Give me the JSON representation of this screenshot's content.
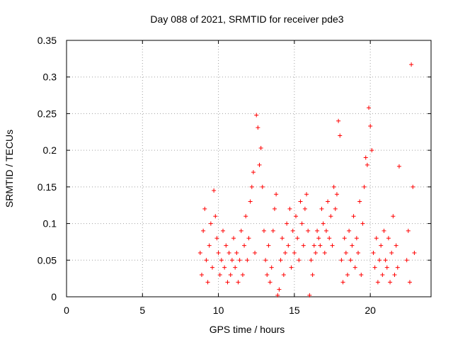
{
  "chart_data": {
    "type": "scatter",
    "title": "Day 088 of 2021, SRMTID for receiver pde3",
    "xlabel": "GPS time / hours",
    "ylabel": "SRMTID / TECUs",
    "xlim": [
      0,
      24
    ],
    "ylim": [
      0,
      0.35
    ],
    "xticks": [
      0,
      5,
      10,
      15,
      20
    ],
    "xtick_labels": [
      "0",
      "5",
      "10",
      "15",
      "20"
    ],
    "yticks": [
      0,
      0.05,
      0.1,
      0.15,
      0.2,
      0.25,
      0.3,
      0.35
    ],
    "ytick_labels": [
      "0",
      "0.05",
      "0.1",
      "0.15",
      "0.2",
      "0.25",
      "0.3",
      "0.35"
    ],
    "grid": true,
    "marker": "+",
    "colors": {
      "points": "#ff0000",
      "grid": "#a0a0a0",
      "axes": "#000000"
    },
    "series": [
      {
        "name": "SRMTID",
        "points": [
          [
            8.8,
            0.06
          ],
          [
            8.9,
            0.03
          ],
          [
            9.0,
            0.09
          ],
          [
            9.1,
            0.12
          ],
          [
            9.2,
            0.05
          ],
          [
            9.3,
            0.02
          ],
          [
            9.4,
            0.07
          ],
          [
            9.5,
            0.1
          ],
          [
            9.6,
            0.04
          ],
          [
            9.7,
            0.145
          ],
          [
            9.8,
            0.11
          ],
          [
            9.9,
            0.08
          ],
          [
            10.0,
            0.06
          ],
          [
            10.1,
            0.03
          ],
          [
            10.2,
            0.05
          ],
          [
            10.3,
            0.09
          ],
          [
            10.4,
            0.04
          ],
          [
            10.5,
            0.07
          ],
          [
            10.6,
            0.02
          ],
          [
            10.7,
            0.06
          ],
          [
            10.8,
            0.03
          ],
          [
            10.9,
            0.05
          ],
          [
            11.0,
            0.08
          ],
          [
            11.1,
            0.04
          ],
          [
            11.2,
            0.06
          ],
          [
            11.3,
            0.02
          ],
          [
            11.4,
            0.05
          ],
          [
            11.5,
            0.09
          ],
          [
            11.6,
            0.03
          ],
          [
            11.7,
            0.07
          ],
          [
            11.8,
            0.11
          ],
          [
            11.9,
            0.05
          ],
          [
            12.0,
            0.08
          ],
          [
            12.1,
            0.13
          ],
          [
            12.2,
            0.15
          ],
          [
            12.3,
            0.17
          ],
          [
            12.4,
            0.06
          ],
          [
            12.5,
            0.248
          ],
          [
            12.6,
            0.231
          ],
          [
            12.7,
            0.18
          ],
          [
            12.8,
            0.203
          ],
          [
            12.9,
            0.15
          ],
          [
            13.0,
            0.09
          ],
          [
            13.1,
            0.05
          ],
          [
            13.2,
            0.03
          ],
          [
            13.3,
            0.07
          ],
          [
            13.4,
            0.02
          ],
          [
            13.5,
            0.04
          ],
          [
            13.6,
            0.09
          ],
          [
            13.7,
            0.12
          ],
          [
            13.8,
            0.14
          ],
          [
            13.9,
            0.002
          ],
          [
            14.0,
            0.01
          ],
          [
            14.1,
            0.05
          ],
          [
            14.2,
            0.08
          ],
          [
            14.3,
            0.03
          ],
          [
            14.4,
            0.06
          ],
          [
            14.5,
            0.1
          ],
          [
            14.6,
            0.07
          ],
          [
            14.7,
            0.12
          ],
          [
            14.8,
            0.04
          ],
          [
            14.9,
            0.09
          ],
          [
            15.0,
            0.06
          ],
          [
            15.1,
            0.11
          ],
          [
            15.2,
            0.08
          ],
          [
            15.3,
            0.05
          ],
          [
            15.4,
            0.13
          ],
          [
            15.5,
            0.1
          ],
          [
            15.6,
            0.07
          ],
          [
            15.7,
            0.12
          ],
          [
            15.8,
            0.14
          ],
          [
            15.9,
            0.09
          ],
          [
            16.0,
            0.002
          ],
          [
            16.1,
            0.05
          ],
          [
            16.2,
            0.03
          ],
          [
            16.3,
            0.07
          ],
          [
            16.4,
            0.06
          ],
          [
            16.5,
            0.09
          ],
          [
            16.6,
            0.08
          ],
          [
            16.7,
            0.07
          ],
          [
            16.8,
            0.12
          ],
          [
            16.9,
            0.1
          ],
          [
            17.0,
            0.06
          ],
          [
            17.1,
            0.09
          ],
          [
            17.2,
            0.13
          ],
          [
            17.3,
            0.08
          ],
          [
            17.4,
            0.11
          ],
          [
            17.5,
            0.07
          ],
          [
            17.6,
            0.15
          ],
          [
            17.7,
            0.12
          ],
          [
            17.8,
            0.14
          ],
          [
            17.9,
            0.24
          ],
          [
            18.0,
            0.22
          ],
          [
            18.1,
            0.05
          ],
          [
            18.2,
            0.02
          ],
          [
            18.3,
            0.08
          ],
          [
            18.4,
            0.06
          ],
          [
            18.5,
            0.03
          ],
          [
            18.6,
            0.09
          ],
          [
            18.7,
            0.05
          ],
          [
            18.8,
            0.07
          ],
          [
            18.9,
            0.11
          ],
          [
            19.0,
            0.04
          ],
          [
            19.1,
            0.08
          ],
          [
            19.2,
            0.06
          ],
          [
            19.3,
            0.13
          ],
          [
            19.4,
            0.03
          ],
          [
            19.5,
            0.1
          ],
          [
            19.6,
            0.15
          ],
          [
            19.7,
            0.19
          ],
          [
            19.8,
            0.18
          ],
          [
            19.9,
            0.258
          ],
          [
            20.0,
            0.233
          ],
          [
            20.1,
            0.2
          ],
          [
            20.2,
            0.06
          ],
          [
            20.3,
            0.04
          ],
          [
            20.4,
            0.08
          ],
          [
            20.5,
            0.02
          ],
          [
            20.6,
            0.05
          ],
          [
            20.7,
            0.07
          ],
          [
            20.8,
            0.03
          ],
          [
            20.9,
            0.09
          ],
          [
            21.0,
            0.05
          ],
          [
            21.1,
            0.04
          ],
          [
            21.2,
            0.08
          ],
          [
            21.3,
            0.02
          ],
          [
            21.4,
            0.06
          ],
          [
            21.5,
            0.11
          ],
          [
            21.6,
            0.03
          ],
          [
            21.7,
            0.07
          ],
          [
            21.8,
            0.04
          ],
          [
            21.9,
            0.178
          ],
          [
            22.4,
            0.05
          ],
          [
            22.5,
            0.09
          ],
          [
            22.6,
            0.02
          ],
          [
            22.7,
            0.317
          ],
          [
            22.8,
            0.15
          ],
          [
            22.9,
            0.06
          ]
        ]
      }
    ]
  }
}
